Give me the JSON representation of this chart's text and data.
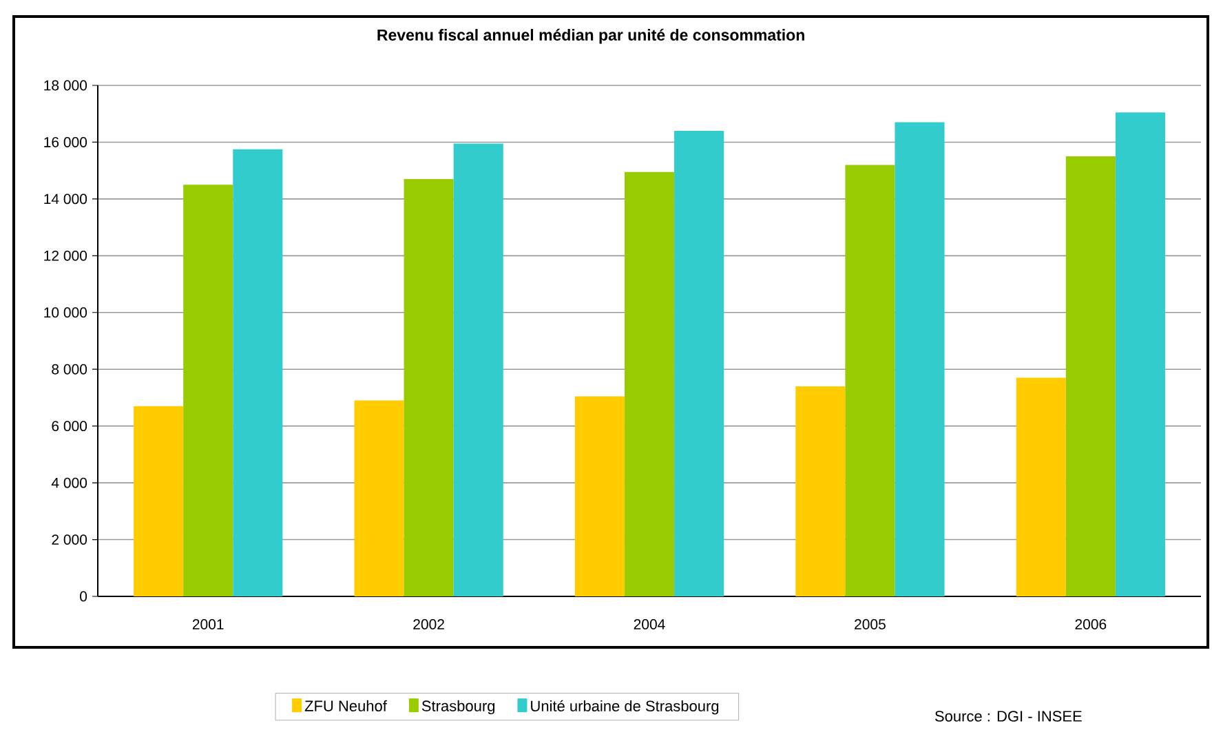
{
  "chart_data": {
    "type": "bar",
    "title": "Revenu fiscal annuel médian par unité de consommation",
    "categories": [
      "2001",
      "2002",
      "2004",
      "2005",
      "2006"
    ],
    "series": [
      {
        "name": "ZFU Neuhof",
        "color": "#ffcc00",
        "values": [
          6700,
          6900,
          7050,
          7400,
          7700
        ]
      },
      {
        "name": "Strasbourg",
        "color": "#99cc00",
        "values": [
          14500,
          14700,
          14950,
          15200,
          15500
        ]
      },
      {
        "name": "Unité urbaine de Strasbourg",
        "color": "#33cccc",
        "values": [
          15750,
          15950,
          16400,
          16700,
          17050
        ]
      }
    ],
    "ylim": [
      0,
      18000
    ],
    "yticks": [
      0,
      {
        "value": 2000,
        "label": "2 000"
      },
      {
        "value": 4000,
        "label": "4 000"
      },
      {
        "value": 6000,
        "label": "6 000"
      },
      {
        "value": 8000,
        "label": "8 000"
      },
      {
        "value": 10000,
        "label": "10 000"
      },
      {
        "value": 12000,
        "label": "12 000"
      },
      {
        "value": 14000,
        "label": "14 000"
      },
      {
        "value": 16000,
        "label": "16 000"
      },
      {
        "value": 18000,
        "label": "18 000"
      }
    ],
    "grid": "y",
    "legend": "bottom",
    "annotations": [
      "Source : DGI - INSEE"
    ]
  }
}
